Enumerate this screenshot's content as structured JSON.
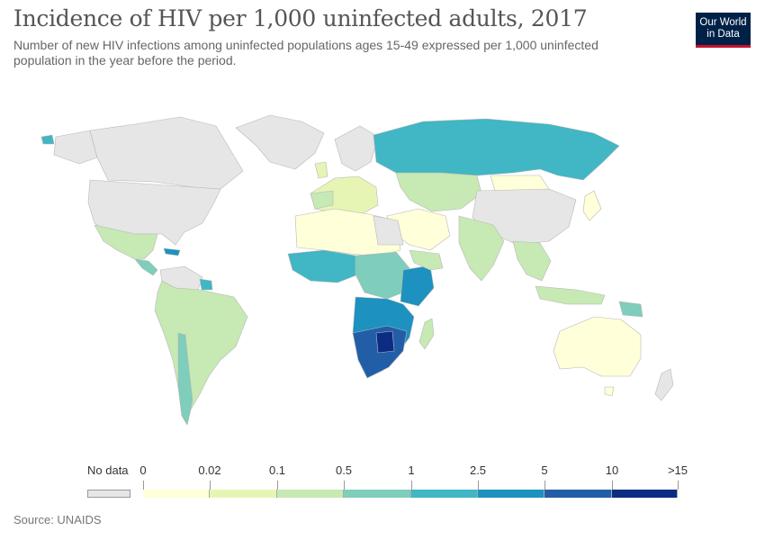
{
  "header": {
    "title": "Incidence of HIV per 1,000 uninfected adults, 2017",
    "subtitle": "Number of new HIV infections among uninfected populations ages 15-49 expressed per 1,000 uninfected population in the year before the period.",
    "logo_line1": "Our World",
    "logo_line2": "in Data"
  },
  "legend": {
    "no_data_label": "No data",
    "no_data_color": "#e6e6e6",
    "bins": [
      {
        "label": "0",
        "color": "#ffffd9"
      },
      {
        "label": "0.02",
        "color": "#e7f5b4"
      },
      {
        "label": "0.1",
        "color": "#c7e9b4"
      },
      {
        "label": "0.5",
        "color": "#7fcdbb"
      },
      {
        "label": "1",
        "color": "#41b6c4"
      },
      {
        "label": "2.5",
        "color": "#1d91c0"
      },
      {
        "label": "5",
        "color": "#225ea8"
      },
      {
        "label": "10",
        "color": "#0c2c84"
      }
    ],
    "last_label": ">15"
  },
  "footer": {
    "source": "Source: UNAIDS"
  }
}
